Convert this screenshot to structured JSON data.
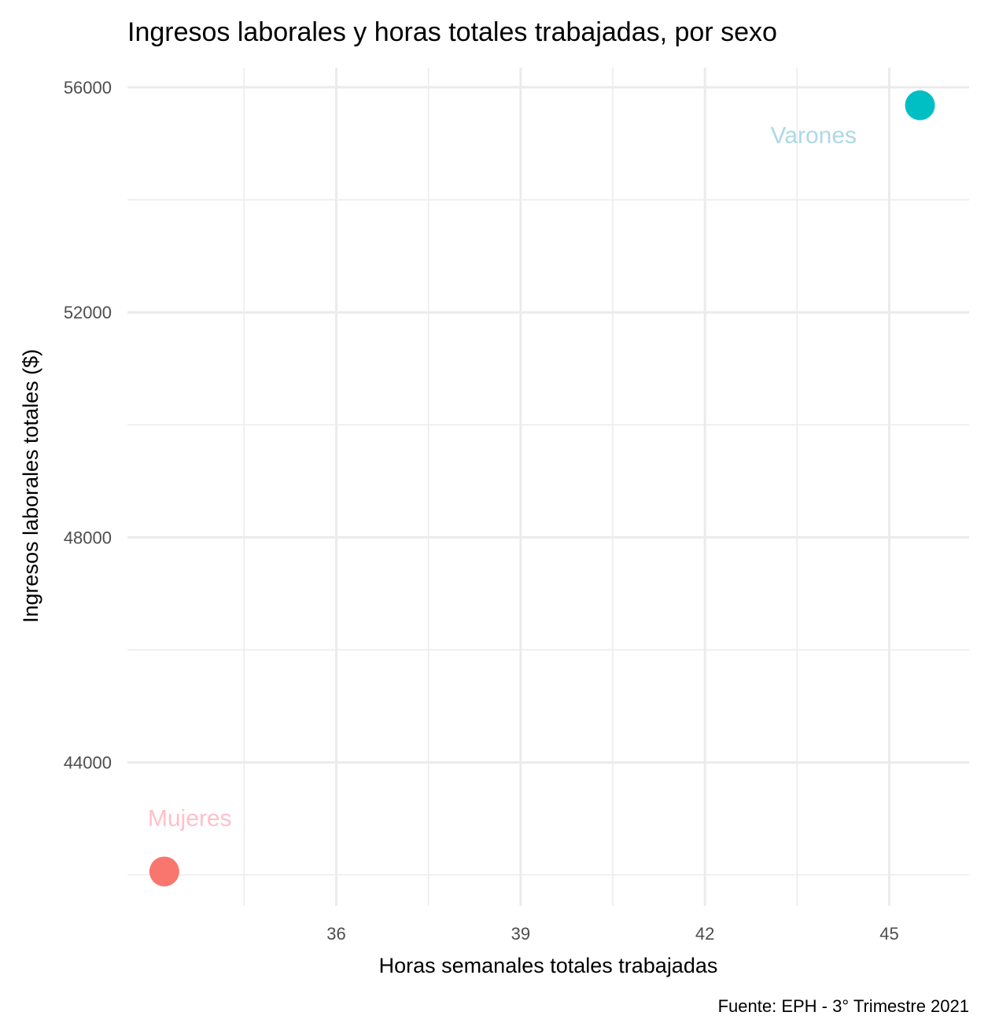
{
  "chart_data": {
    "type": "scatter",
    "title": "Ingresos laborales y horas totales trabajadas, por sexo",
    "xlabel": "Horas semanales totales trabajadas",
    "ylabel": "Ingresos laborales totales ($)",
    "caption": "Fuente: EPH - 3° Trimestre 2021",
    "xlim": [
      32.6,
      46.3
    ],
    "ylim": [
      41450,
      56350
    ],
    "x_ticks": [
      36,
      39,
      42,
      45
    ],
    "x_tick_labels": [
      "36",
      "39",
      "42",
      "45"
    ],
    "x_minor": [
      34.5,
      37.5,
      40.5,
      43.5
    ],
    "y_ticks": [
      44000,
      48000,
      52000,
      56000
    ],
    "y_tick_labels": [
      "44000",
      "48000",
      "52000",
      "56000"
    ],
    "y_minor": [
      42000,
      46000,
      50000,
      54000
    ],
    "grid": true,
    "legend": "none",
    "series": [
      {
        "name": "Mujeres",
        "x": 33.2,
        "y": 42060,
        "color": "#F8766D",
        "label_color": "#FFC0CB"
      },
      {
        "name": "Varones",
        "x": 45.5,
        "y": 55680,
        "color": "#00BFC4",
        "label_color": "#ADD8E6"
      }
    ]
  }
}
